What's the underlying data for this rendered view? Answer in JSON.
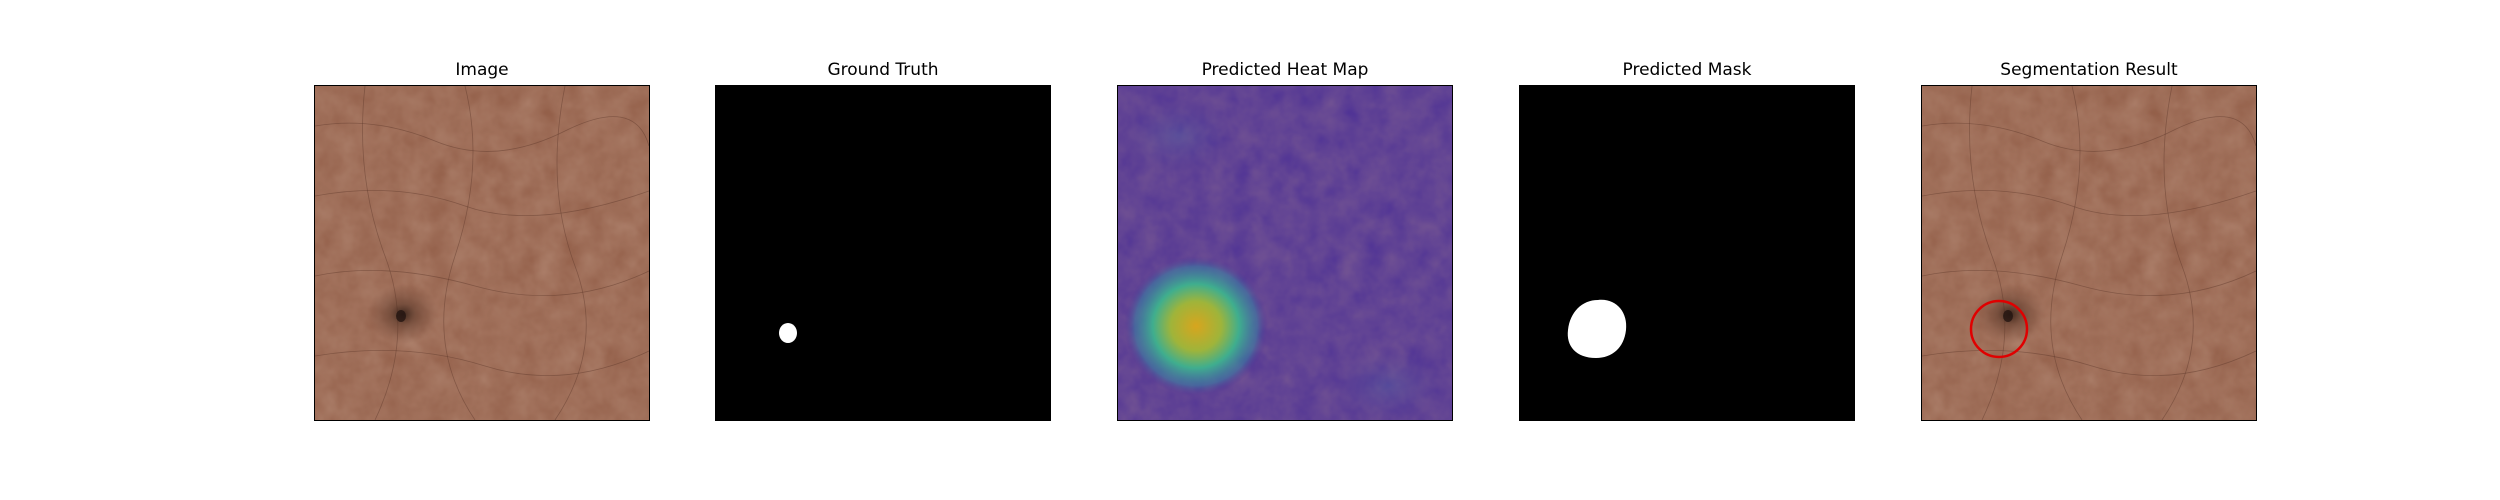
{
  "panels": [
    {
      "title": "Image"
    },
    {
      "title": "Ground Truth"
    },
    {
      "title": "Predicted Heat Map"
    },
    {
      "title": "Predicted Mask"
    },
    {
      "title": "Segmentation Result"
    }
  ],
  "colors": {
    "leather": "#8f5a44",
    "mask_bg": "#000000",
    "mask_fg": "#ffffff",
    "heat_low": "#4a2e96",
    "heat_high": "#d8a21f",
    "contour": "#e00000"
  }
}
